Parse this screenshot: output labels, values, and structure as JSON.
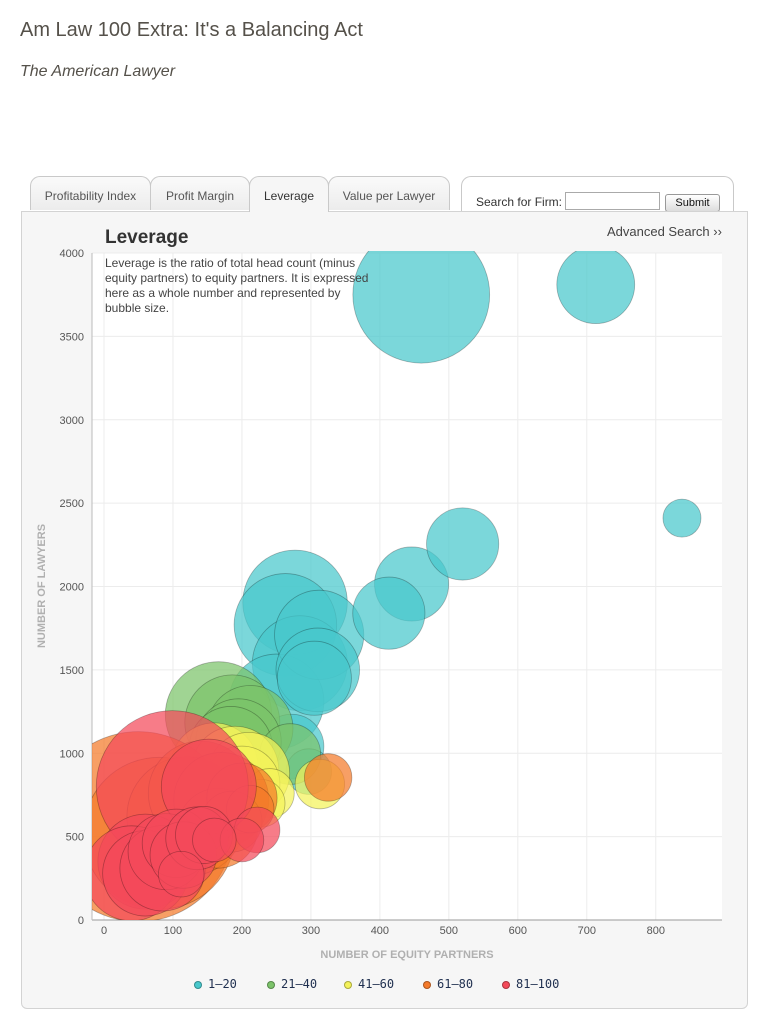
{
  "header": {
    "title": "Am Law 100 Extra: It's a Balancing Act",
    "subtitle": "The American Lawyer"
  },
  "tabs": [
    {
      "label": "Profitability Index",
      "active": false
    },
    {
      "label": "Profit Margin",
      "active": false
    },
    {
      "label": "Leverage",
      "active": true
    },
    {
      "label": "Value per Lawyer",
      "active": false
    }
  ],
  "search": {
    "label": "Search for Firm:",
    "value": "",
    "placeholder": "",
    "submit_label": "Submit",
    "advanced_label": "Advanced Search ››"
  },
  "panel": {
    "title": "Leverage",
    "description": "Leverage is the ratio of total head count (minus equity partners) to equity partners. It is expressed here as a whole number and represented by bubble size."
  },
  "legend": [
    {
      "label": "1–20",
      "color": "#48c8cc"
    },
    {
      "label": "21–40",
      "color": "#7cc36a"
    },
    {
      "label": "41–60",
      "color": "#f4f25a"
    },
    {
      "label": "61–80",
      "color": "#f47a2a"
    },
    {
      "label": "81–100",
      "color": "#f44a5a"
    }
  ],
  "chart_data": {
    "type": "scatter",
    "variant": "bubble",
    "title": "",
    "xlabel": "NUMBER OF EQUITY PARTNERS",
    "ylabel": "NUMBER OF LAWYERS",
    "xlim": [
      -20,
      900
    ],
    "ylim": [
      0,
      4000
    ],
    "xticks": [
      0,
      100,
      200,
      300,
      400,
      500,
      600,
      700,
      800
    ],
    "yticks": [
      0,
      500,
      1000,
      1500,
      2000,
      2500,
      3000,
      3500,
      4000
    ],
    "grid": true,
    "legend_position": "bottom",
    "size_metric": "leverage",
    "series": [
      {
        "name": "1–20",
        "color": "#48c8cc",
        "points": [
          {
            "x": 460,
            "y": 3750,
            "size": 7.2
          },
          {
            "x": 713,
            "y": 3810,
            "size": 4.1
          },
          {
            "x": 838,
            "y": 2410,
            "size": 2.0
          },
          {
            "x": 520,
            "y": 2255,
            "size": 3.8
          },
          {
            "x": 446,
            "y": 2015,
            "size": 3.9
          },
          {
            "x": 413,
            "y": 1840,
            "size": 3.8
          },
          {
            "x": 277,
            "y": 1905,
            "size": 5.5
          },
          {
            "x": 263,
            "y": 1770,
            "size": 5.4
          },
          {
            "x": 312,
            "y": 1710,
            "size": 4.7
          },
          {
            "x": 284,
            "y": 1540,
            "size": 5.0
          },
          {
            "x": 310,
            "y": 1500,
            "size": 4.4
          },
          {
            "x": 305,
            "y": 1450,
            "size": 3.9
          },
          {
            "x": 250,
            "y": 1310,
            "size": 5.0
          },
          {
            "x": 272,
            "y": 1040,
            "size": 3.4
          },
          {
            "x": 297,
            "y": 890,
            "size": 2.4
          }
        ]
      },
      {
        "name": "21–40",
        "color": "#7cc36a",
        "points": [
          {
            "x": 166,
            "y": 1230,
            "size": 5.6
          },
          {
            "x": 186,
            "y": 1185,
            "size": 5.0
          },
          {
            "x": 212,
            "y": 1150,
            "size": 4.5
          },
          {
            "x": 195,
            "y": 1070,
            "size": 4.5
          },
          {
            "x": 184,
            "y": 1030,
            "size": 4.4
          },
          {
            "x": 270,
            "y": 995,
            "size": 3.2
          }
        ]
      },
      {
        "name": "41–60",
        "color": "#f4f25a",
        "points": [
          {
            "x": 160,
            "y": 920,
            "size": 4.6
          },
          {
            "x": 190,
            "y": 900,
            "size": 4.6
          },
          {
            "x": 210,
            "y": 880,
            "size": 4.3
          },
          {
            "x": 200,
            "y": 815,
            "size": 4.0
          },
          {
            "x": 240,
            "y": 760,
            "size": 2.6
          },
          {
            "x": 313,
            "y": 815,
            "size": 2.6
          },
          {
            "x": 228,
            "y": 700,
            "size": 2.5
          }
        ]
      },
      {
        "name": "61–80",
        "color": "#f47a2a",
        "points": [
          {
            "x": 50,
            "y": 560,
            "size": 10.0
          },
          {
            "x": 80,
            "y": 520,
            "size": 8.0
          },
          {
            "x": 120,
            "y": 620,
            "size": 6.3
          },
          {
            "x": 140,
            "y": 760,
            "size": 5.5
          },
          {
            "x": 170,
            "y": 720,
            "size": 5.0
          },
          {
            "x": 200,
            "y": 730,
            "size": 3.7
          },
          {
            "x": 165,
            "y": 550,
            "size": 4.2
          },
          {
            "x": 185,
            "y": 590,
            "size": 3.2
          },
          {
            "x": 325,
            "y": 855,
            "size": 2.5
          },
          {
            "x": 212,
            "y": 665,
            "size": 2.5
          }
        ]
      },
      {
        "name": "81–100",
        "color": "#f44a5a",
        "points": [
          {
            "x": 99,
            "y": 800,
            "size": 8.0
          },
          {
            "x": 152,
            "y": 800,
            "size": 5.0
          },
          {
            "x": 60,
            "y": 350,
            "size": 5.0
          },
          {
            "x": 40,
            "y": 280,
            "size": 5.0
          },
          {
            "x": 60,
            "y": 280,
            "size": 4.5
          },
          {
            "x": 85,
            "y": 310,
            "size": 4.5
          },
          {
            "x": 90,
            "y": 410,
            "size": 4.0
          },
          {
            "x": 105,
            "y": 460,
            "size": 3.6
          },
          {
            "x": 135,
            "y": 490,
            "size": 3.3
          },
          {
            "x": 145,
            "y": 510,
            "size": 3.0
          },
          {
            "x": 115,
            "y": 390,
            "size": 3.5
          },
          {
            "x": 200,
            "y": 480,
            "size": 2.3
          },
          {
            "x": 222,
            "y": 540,
            "size": 2.4
          },
          {
            "x": 112,
            "y": 275,
            "size": 2.4
          },
          {
            "x": 160,
            "y": 480,
            "size": 2.3
          }
        ]
      }
    ]
  }
}
